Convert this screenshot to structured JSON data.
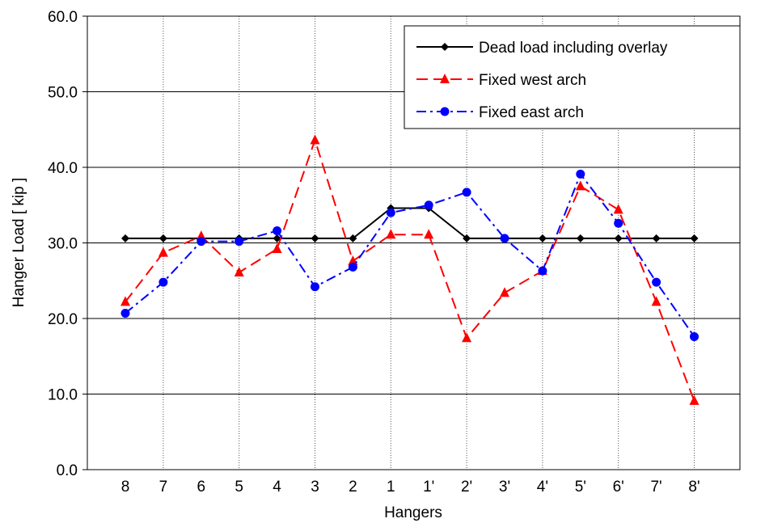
{
  "chart_data": {
    "type": "line",
    "title": "",
    "xlabel": "Hangers",
    "ylabel": "Hanger Load [ kip ]",
    "ylim": [
      0,
      60
    ],
    "yticks": [
      "0.0",
      "10.0",
      "20.0",
      "30.0",
      "40.0",
      "50.0",
      "60.0"
    ],
    "categories": [
      "8",
      "7",
      "6",
      "5",
      "4",
      "3",
      "2",
      "1",
      "1'",
      "2'",
      "3'",
      "4'",
      "5'",
      "6'",
      "7'",
      "8'"
    ],
    "legend_position": "top-right",
    "grid": {
      "horizontal": true,
      "vertical": "dotted"
    },
    "series": [
      {
        "name": "Dead load including overlay",
        "color": "#000000",
        "marker": "diamond",
        "dash": "solid",
        "values": [
          30.6,
          30.6,
          30.6,
          30.6,
          30.6,
          30.6,
          30.6,
          34.6,
          34.6,
          30.6,
          30.6,
          30.6,
          30.6,
          30.6,
          30.6,
          30.6
        ]
      },
      {
        "name": "Fixed west arch",
        "color": "#ff0000",
        "marker": "triangle",
        "dash": "dashed",
        "values": [
          22.2,
          28.7,
          30.9,
          26.1,
          29.2,
          43.6,
          27.6,
          31.1,
          31.1,
          17.4,
          23.4,
          26.3,
          37.5,
          34.4,
          22.2,
          9.1
        ]
      },
      {
        "name": "Fixed east arch",
        "color": "#0000ff",
        "marker": "circle",
        "dash": "dashdot",
        "values": [
          20.7,
          24.8,
          30.2,
          30.2,
          31.6,
          24.2,
          26.8,
          34.0,
          35.0,
          36.7,
          30.6,
          26.3,
          39.1,
          32.6,
          24.8,
          17.6
        ]
      }
    ]
  }
}
